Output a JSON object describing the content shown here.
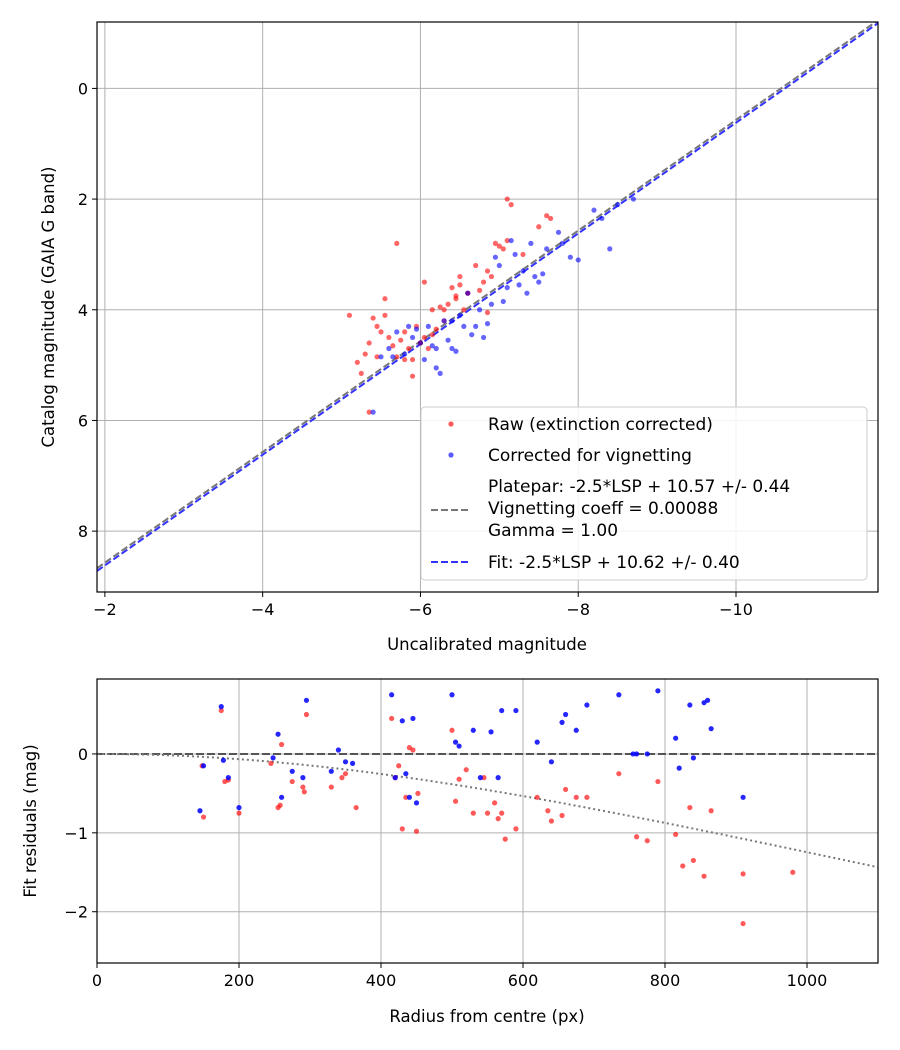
{
  "chart_data": [
    {
      "type": "scatter",
      "xlabel": "Uncalibrated magnitude",
      "ylabel": "Catalog magnitude (GAIA G band)",
      "xlim": [
        -1.9,
        -11.8
      ],
      "ylim": [
        9.1,
        -1.2
      ],
      "x_inverted": true,
      "y_inverted": true,
      "xticks": [
        -2,
        -4,
        -6,
        -8,
        -10
      ],
      "yticks": [
        0,
        2,
        4,
        6,
        8
      ],
      "grid": true,
      "legend_position": "lower-right",
      "series": [
        {
          "name": "Raw (extinction corrected)",
          "kind": "points",
          "color": "#ff0000",
          "x": [
            -5.1,
            -5.2,
            -5.25,
            -5.3,
            -5.35,
            -5.4,
            -5.45,
            -5.5,
            -5.55,
            -5.6,
            -5.65,
            -5.7,
            -5.75,
            -5.8,
            -5.85,
            -5.9,
            -5.95,
            -6.0,
            -6.05,
            -6.1,
            -6.15,
            -6.2,
            -6.3,
            -6.35,
            -6.4,
            -6.45,
            -6.5,
            -6.55,
            -6.6,
            -6.7,
            -6.75,
            -6.8,
            -6.85,
            -6.9,
            -6.95,
            -7.0,
            -7.05,
            -7.1,
            -7.15,
            -7.6,
            -7.65,
            -5.7,
            -5.9,
            -6.05,
            -6.3,
            -6.6,
            -7.1,
            -5.35,
            -5.45,
            -6.15,
            -6.45,
            -6.85,
            -7.3,
            -7.5,
            -5.55,
            -5.8,
            -6.0,
            -6.25,
            -6.5
          ],
          "y": [
            4.1,
            4.95,
            5.15,
            4.8,
            4.6,
            4.15,
            4.3,
            4.4,
            3.8,
            4.5,
            4.65,
            4.85,
            4.55,
            4.4,
            4.7,
            4.9,
            4.3,
            4.6,
            4.5,
            4.7,
            4.45,
            4.35,
            4.2,
            3.9,
            3.6,
            3.75,
            3.4,
            4.0,
            3.7,
            3.2,
            3.65,
            3.5,
            4.05,
            3.4,
            2.8,
            2.85,
            2.9,
            2.0,
            2.1,
            2.3,
            2.35,
            2.8,
            5.2,
            3.5,
            4.0,
            3.7,
            2.75,
            5.85,
            4.85,
            4.0,
            3.8,
            3.3,
            3.0,
            2.5,
            4.1,
            4.9,
            4.6,
            3.95,
            3.55
          ]
        },
        {
          "name": "Corrected for vignetting",
          "kind": "points",
          "color": "#0000ff",
          "x": [
            -5.4,
            -5.5,
            -5.6,
            -5.7,
            -5.8,
            -5.9,
            -6.0,
            -6.1,
            -6.2,
            -6.3,
            -6.4,
            -6.5,
            -6.6,
            -6.7,
            -6.8,
            -6.9,
            -7.0,
            -7.1,
            -7.2,
            -7.3,
            -7.4,
            -7.5,
            -7.6,
            -7.8,
            -8.0,
            -8.2,
            -8.4,
            -8.5,
            -8.7,
            -6.05,
            -6.25,
            -6.45,
            -6.65,
            -6.85,
            -7.05,
            -7.25,
            -7.45,
            -5.85,
            -6.15,
            -6.35,
            -6.55,
            -6.75,
            -6.95,
            -7.15,
            -7.35,
            -7.55,
            -7.75,
            -7.9,
            -8.3,
            -5.65,
            -5.95,
            -6.2,
            -6.4
          ],
          "y": [
            5.85,
            4.85,
            4.7,
            4.4,
            4.8,
            4.5,
            4.6,
            4.3,
            5.05,
            4.2,
            4.7,
            4.1,
            3.7,
            4.3,
            4.5,
            3.9,
            3.2,
            3.6,
            3.0,
            3.3,
            2.8,
            3.5,
            2.9,
            2.8,
            3.1,
            2.2,
            2.9,
            2.1,
            2.0,
            4.9,
            5.15,
            4.75,
            4.45,
            4.25,
            3.85,
            3.55,
            3.4,
            4.3,
            4.65,
            4.55,
            4.3,
            4.0,
            3.05,
            2.75,
            3.7,
            3.35,
            2.6,
            3.05,
            2.35,
            4.85,
            4.35,
            4.7,
            4.2
          ]
        },
        {
          "name": "Platepar: -2.5*LSP + 10.57 +/- 0.44\nVignetting coeff = 0.00088\nGamma = 1.00",
          "kind": "line",
          "style": "dashed",
          "color": "#777777",
          "slope": 1.0,
          "intercept": 10.57
        },
        {
          "name": "Fit: -2.5*LSP + 10.62 +/- 0.40",
          "kind": "line",
          "style": "dashed",
          "color": "#3333ff",
          "slope": 1.0,
          "intercept": 10.62
        }
      ]
    },
    {
      "type": "scatter",
      "xlabel": "Radius from centre (px)",
      "ylabel": "Fit residuals (mag)",
      "xlim": [
        0,
        1100
      ],
      "ylim": [
        -2.65,
        0.95
      ],
      "xticks": [
        0,
        200,
        400,
        600,
        800,
        1000
      ],
      "yticks": [
        0,
        -1,
        -2
      ],
      "grid": true,
      "series": [
        {
          "kind": "points",
          "color": "#ff0000",
          "x": [
            148,
            150,
            175,
            180,
            185,
            200,
            245,
            255,
            258,
            260,
            275,
            290,
            292,
            295,
            330,
            345,
            350,
            365,
            415,
            420,
            425,
            430,
            435,
            440,
            445,
            450,
            452,
            500,
            505,
            510,
            520,
            530,
            545,
            550,
            560,
            565,
            570,
            575,
            590,
            620,
            635,
            640,
            655,
            660,
            675,
            690,
            735,
            760,
            775,
            790,
            815,
            825,
            835,
            840,
            855,
            865,
            910,
            910,
            980
          ],
          "y": [
            -0.15,
            -0.8,
            0.55,
            -0.35,
            -0.33,
            -0.75,
            -0.12,
            -0.68,
            -0.65,
            0.12,
            -0.35,
            -0.42,
            -0.48,
            0.5,
            -0.42,
            -0.3,
            -0.25,
            -0.68,
            0.45,
            -0.3,
            -0.15,
            -0.95,
            -0.55,
            0.08,
            0.05,
            -0.98,
            -0.5,
            0.3,
            -0.6,
            -0.32,
            -0.2,
            -0.75,
            -0.3,
            -0.75,
            -0.62,
            -0.82,
            -0.75,
            -1.08,
            -0.95,
            -0.55,
            -0.72,
            -0.85,
            -0.78,
            -0.45,
            -0.55,
            -0.55,
            -0.25,
            -1.05,
            -1.1,
            -0.35,
            -1.02,
            -1.42,
            -0.68,
            -1.35,
            -1.55,
            -0.72,
            -1.52,
            -2.15,
            -1.5
          ]
        },
        {
          "kind": "points",
          "color": "#0000ff",
          "x": [
            145,
            150,
            175,
            178,
            185,
            200,
            248,
            255,
            260,
            275,
            290,
            295,
            330,
            340,
            350,
            360,
            415,
            420,
            430,
            435,
            440,
            445,
            450,
            500,
            505,
            510,
            530,
            540,
            555,
            565,
            570,
            590,
            620,
            640,
            655,
            660,
            675,
            690,
            735,
            755,
            760,
            775,
            790,
            815,
            820,
            835,
            840,
            855,
            860,
            865,
            910
          ],
          "y": [
            -0.72,
            -0.15,
            0.6,
            -0.08,
            -0.3,
            -0.68,
            -0.05,
            0.25,
            -0.55,
            -0.22,
            -0.3,
            0.68,
            -0.22,
            0.05,
            -0.1,
            -0.12,
            0.75,
            -0.3,
            0.42,
            -0.25,
            -0.55,
            0.45,
            -0.62,
            0.75,
            0.15,
            0.1,
            0.3,
            -0.3,
            0.28,
            -0.3,
            0.55,
            0.55,
            0.15,
            -0.1,
            0.4,
            0.5,
            0.3,
            0.62,
            0.75,
            0.0,
            0.0,
            0.0,
            0.8,
            0.2,
            -0.18,
            0.62,
            -0.05,
            0.65,
            0.68,
            0.32,
            -0.55
          ]
        },
        {
          "kind": "line",
          "style": "dashed",
          "color": "#555555",
          "y_const": 0
        },
        {
          "kind": "curve",
          "style": "dotted",
          "color": "#777777",
          "vignetting_coeff": 0.00088
        }
      ]
    }
  ]
}
